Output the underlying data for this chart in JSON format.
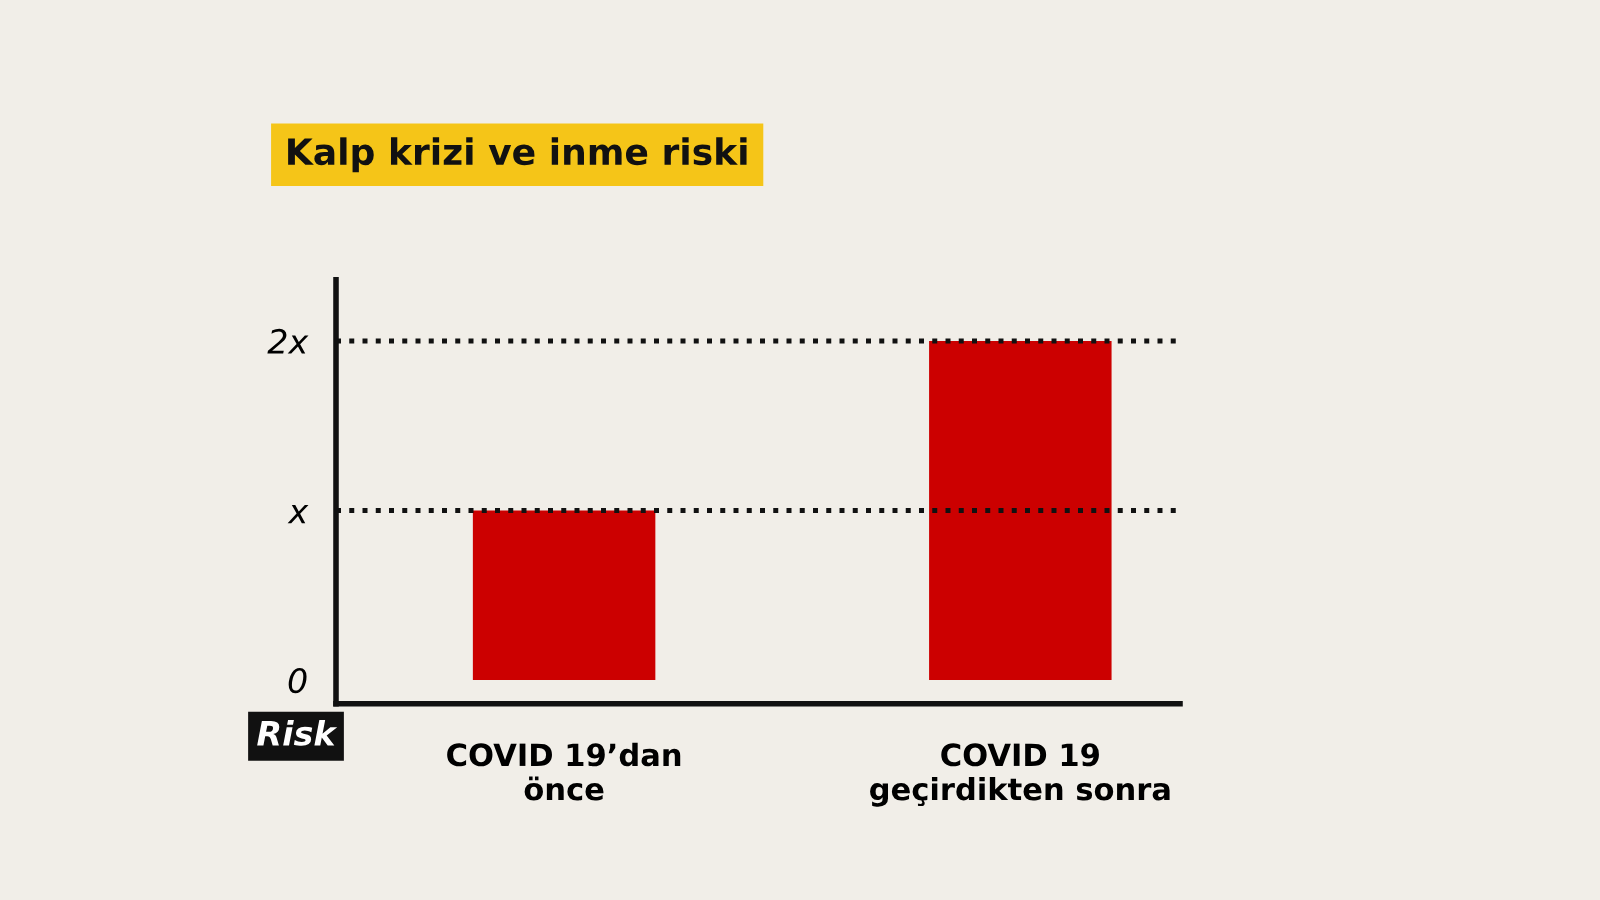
{
  "chart_data": {
    "type": "bar",
    "title": "Kalp krizi ve inme riski",
    "ylabel": "Risk",
    "categories": [
      "COVID 19’dan\nönce",
      "COVID 19\ngeçirdikten sonra"
    ],
    "values": [
      1,
      2
    ],
    "color": "#cc0000",
    "ylim": [
      -0.14,
      2.36
    ],
    "yticks": [
      0,
      {
        "value": 1,
        "label": "x"
      },
      {
        "value": 2,
        "label": "2x"
      }
    ],
    "ref_lines": [
      {
        "axis": "y",
        "value": 1,
        "line_style": "dotted",
        "color": "#111111"
      },
      {
        "axis": "y",
        "value": 2,
        "line_style": "dotted",
        "color": "#111111"
      }
    ],
    "grid": false,
    "legend": false
  }
}
